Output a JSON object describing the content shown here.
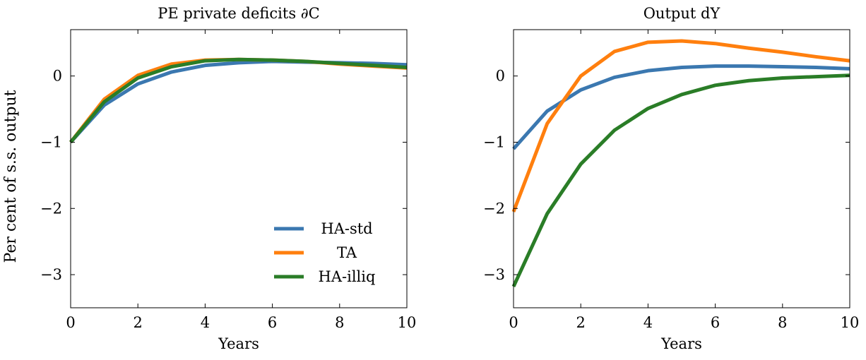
{
  "figure": {
    "ylabel": "Per cent of s.s. output"
  },
  "colors": {
    "HA-std": "#3b78b0",
    "TA": "#ff7f0e",
    "HA-illiq": "#2a7d27"
  },
  "chart_data": [
    {
      "type": "line",
      "title": "PE private deficits ∂C",
      "xlabel": "Years",
      "ylabel": "Per cent of s.s. output",
      "xlim": [
        0,
        10
      ],
      "ylim": [
        -3.5,
        0.7
      ],
      "xticks": [
        0,
        2,
        4,
        6,
        8,
        10
      ],
      "yticks": [
        -3,
        -2,
        -1,
        0
      ],
      "ytick_labels": [
        "−3",
        "−2",
        "−1",
        "0"
      ],
      "x": [
        0,
        1,
        2,
        3,
        4,
        5,
        6,
        7,
        8,
        9,
        10
      ],
      "legend": {
        "position": "bottom-right",
        "entries": [
          "HA-std",
          "TA",
          "HA-illiq"
        ]
      },
      "series": [
        {
          "name": "HA-std",
          "values": [
            -1.0,
            -0.44,
            -0.12,
            0.06,
            0.16,
            0.2,
            0.22,
            0.21,
            0.2,
            0.19,
            0.17
          ]
        },
        {
          "name": "TA",
          "values": [
            -1.0,
            -0.35,
            0.01,
            0.18,
            0.24,
            0.25,
            0.24,
            0.22,
            0.18,
            0.15,
            0.12
          ]
        },
        {
          "name": "HA-illiq",
          "values": [
            -1.0,
            -0.39,
            -0.03,
            0.14,
            0.23,
            0.25,
            0.24,
            0.22,
            0.19,
            0.16,
            0.13
          ]
        }
      ]
    },
    {
      "type": "line",
      "title": "Output dY",
      "xlabel": "Years",
      "ylabel": "",
      "xlim": [
        0,
        10
      ],
      "ylim": [
        -3.5,
        0.7
      ],
      "xticks": [
        0,
        2,
        4,
        6,
        8,
        10
      ],
      "yticks": [
        -3,
        -2,
        -1,
        0
      ],
      "ytick_labels": [
        "−3",
        "−2",
        "−1",
        "0"
      ],
      "x": [
        0,
        1,
        2,
        3,
        4,
        5,
        6,
        7,
        8,
        9,
        10
      ],
      "series": [
        {
          "name": "HA-std",
          "values": [
            -1.1,
            -0.53,
            -0.21,
            -0.02,
            0.08,
            0.13,
            0.15,
            0.15,
            0.14,
            0.13,
            0.11
          ]
        },
        {
          "name": "TA",
          "values": [
            -2.05,
            -0.72,
            0.0,
            0.37,
            0.51,
            0.53,
            0.49,
            0.42,
            0.36,
            0.29,
            0.23
          ]
        },
        {
          "name": "HA-illiq",
          "values": [
            -3.18,
            -2.08,
            -1.33,
            -0.82,
            -0.49,
            -0.28,
            -0.14,
            -0.07,
            -0.03,
            -0.01,
            0.01
          ]
        }
      ]
    }
  ]
}
